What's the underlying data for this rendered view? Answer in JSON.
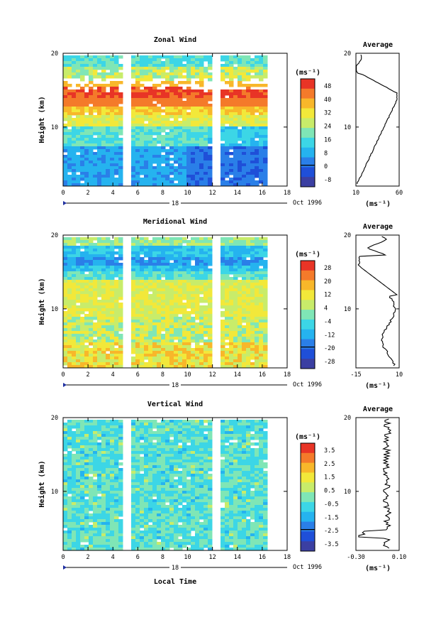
{
  "colors": {
    "scale": [
      "#3b3fa2",
      "#1f4fd8",
      "#2a7fe8",
      "#25b3ef",
      "#3cd6e6",
      "#7fe6b6",
      "#c8ec6a",
      "#f2e83a",
      "#f8b72a",
      "#f47a2a",
      "#e83426"
    ],
    "axis": "#000000",
    "marker": "#2030a0"
  },
  "chart_data": [
    {
      "type": "heatmap",
      "title": "Zonal Wind",
      "ylabel": "Height (km)",
      "xticks": [
        "0",
        "2",
        "4",
        "6",
        "8",
        "10",
        "12",
        "14",
        "16",
        "18"
      ],
      "yticks": [
        "20",
        "10"
      ],
      "xlim": [
        0,
        18
      ],
      "ylim": [
        2,
        20
      ],
      "date_label": "18",
      "month_label": "Oct 1996",
      "colorbar": {
        "unit": "(ms⁻¹)",
        "labels": [
          "48",
          "40",
          "32",
          "24",
          "16",
          "8",
          "0",
          "-8"
        ]
      },
      "average": {
        "title": "Average",
        "xticks": [
          "10",
          "60"
        ],
        "yticks": [
          "20",
          "10"
        ],
        "unit": "(ms⁻¹)"
      }
    },
    {
      "type": "heatmap",
      "title": "Meridional Wind",
      "ylabel": "Height (km)",
      "xticks": [
        "0",
        "2",
        "4",
        "6",
        "8",
        "10",
        "12",
        "14",
        "16",
        "18"
      ],
      "yticks": [
        "20",
        "10"
      ],
      "xlim": [
        0,
        18
      ],
      "ylim": [
        2,
        20
      ],
      "date_label": "18",
      "month_label": "Oct 1996",
      "colorbar": {
        "unit": "(ms⁻¹)",
        "labels": [
          "28",
          "20",
          "12",
          "4",
          "-4",
          "-12",
          "-20",
          "-28"
        ]
      },
      "average": {
        "title": "Average",
        "xticks": [
          "-15",
          "10"
        ],
        "yticks": [
          "20",
          "10"
        ],
        "unit": "(ms⁻¹)"
      }
    },
    {
      "type": "heatmap",
      "title": "Vertical Wind",
      "ylabel": "Height (km)",
      "xticks": [
        "0",
        "2",
        "4",
        "6",
        "8",
        "10",
        "12",
        "14",
        "16",
        "18"
      ],
      "yticks": [
        "20",
        "10"
      ],
      "xlim": [
        0,
        18
      ],
      "ylim": [
        2,
        20
      ],
      "date_label": "18",
      "month_label": "Oct 1996",
      "colorbar": {
        "unit": "(ms⁻¹)",
        "labels": [
          "3.5",
          "2.5",
          "1.5",
          "0.5",
          "-0.5",
          "-1.5",
          "-2.5",
          "-3.5"
        ]
      },
      "average": {
        "title": "Average",
        "xticks": [
          "-0.30",
          "0.10"
        ],
        "yticks": [
          "20",
          "10"
        ],
        "unit": "(ms⁻¹)"
      }
    }
  ],
  "xlabel": "Local Time"
}
